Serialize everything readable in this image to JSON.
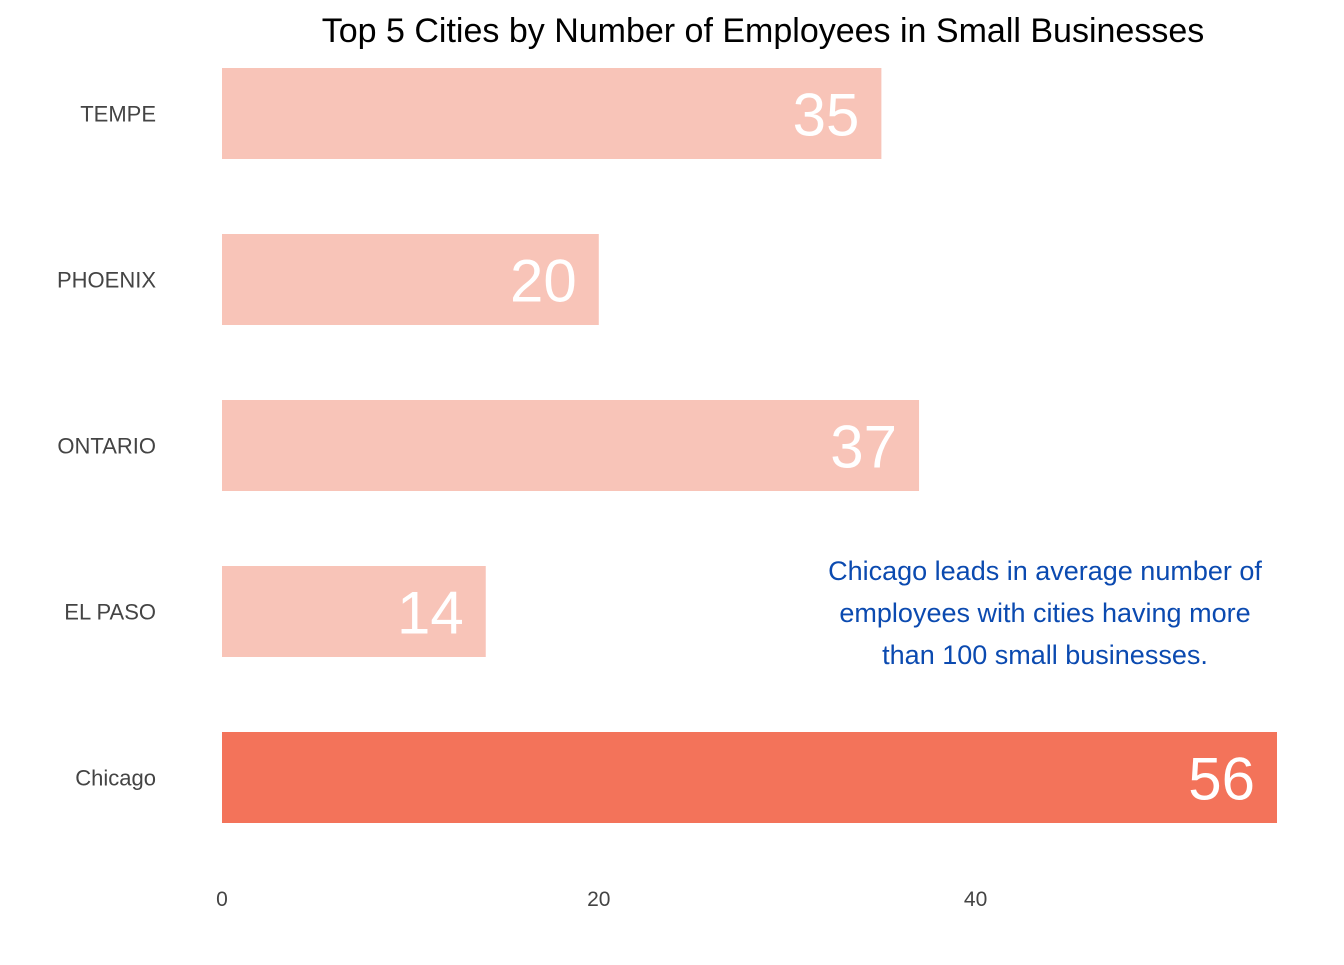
{
  "chart_data": {
    "type": "bar",
    "orientation": "horizontal",
    "title": "Top 5 Cities by Number of Employees in Small Businesses",
    "categories": [
      "TEMPE",
      "PHOENIX",
      "ONTARIO",
      "EL PASO",
      "Chicago"
    ],
    "values": [
      35,
      20,
      37,
      14,
      56
    ],
    "highlight": "Chicago",
    "xlim": [
      0,
      56
    ],
    "xticks": [
      0,
      20,
      40
    ],
    "grid": false,
    "xlabel": "",
    "ylabel": "",
    "annotation": [
      "Chicago leads in average number of",
      "employees with cities having more",
      "than 100 small businesses."
    ]
  },
  "colors": {
    "bar": "#f8c4b8",
    "highlight_bar": "#f3735a",
    "value_label": "#ffffff",
    "axis_text": "#444444",
    "annotation": "#0b4ab0"
  }
}
